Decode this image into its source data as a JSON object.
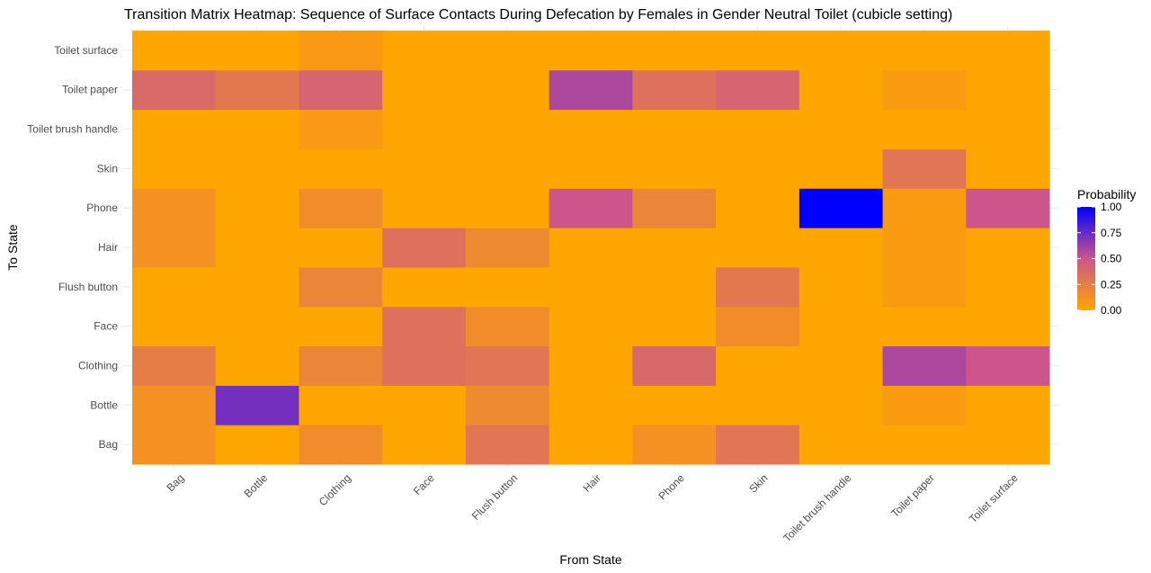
{
  "chart_data": {
    "type": "heatmap",
    "title": "Transition Matrix Heatmap: Sequence of Surface Contacts During Defecation by Females in Gender Neutral Toilet (cubicle setting)",
    "xlabel": "From State",
    "ylabel": "To State",
    "x_categories": [
      "Bag",
      "Bottle",
      "Clothing",
      "Face",
      "Flush button",
      "Hair",
      "Phone",
      "Skin",
      "Toilet brush handle",
      "Toilet paper",
      "Toilet surface"
    ],
    "y_categories": [
      "Bag",
      "Bottle",
      "Clothing",
      "Face",
      "Flush button",
      "Hair",
      "Phone",
      "Skin",
      "Toilet brush handle",
      "Toilet paper",
      "Toilet surface"
    ],
    "values": [
      [
        0.12,
        0.0,
        0.15,
        0.0,
        0.3,
        0.0,
        0.12,
        0.3,
        0.0,
        0.0,
        0.0
      ],
      [
        0.12,
        0.72,
        0.0,
        0.0,
        0.17,
        0.0,
        0.0,
        0.0,
        0.0,
        0.06,
        0.0
      ],
      [
        0.25,
        0.0,
        0.2,
        0.33,
        0.3,
        0.0,
        0.38,
        0.0,
        0.0,
        0.58,
        0.5
      ],
      [
        0.0,
        0.0,
        0.0,
        0.33,
        0.15,
        0.0,
        0.0,
        0.15,
        0.0,
        0.0,
        0.0
      ],
      [
        0.0,
        0.0,
        0.2,
        0.0,
        0.0,
        0.0,
        0.0,
        0.28,
        0.0,
        0.06,
        0.0
      ],
      [
        0.12,
        0.0,
        0.0,
        0.33,
        0.17,
        0.0,
        0.0,
        0.0,
        0.0,
        0.06,
        0.0
      ],
      [
        0.12,
        0.0,
        0.15,
        0.0,
        0.0,
        0.5,
        0.2,
        0.0,
        1.0,
        0.06,
        0.5
      ],
      [
        0.0,
        0.0,
        0.0,
        0.0,
        0.0,
        0.0,
        0.0,
        0.0,
        0.0,
        0.3,
        0.0
      ],
      [
        0.0,
        0.0,
        0.07,
        0.0,
        0.0,
        0.0,
        0.0,
        0.0,
        0.0,
        0.0,
        0.0
      ],
      [
        0.37,
        0.28,
        0.4,
        0.0,
        0.0,
        0.58,
        0.33,
        0.4,
        0.0,
        0.06,
        0.0
      ],
      [
        0.0,
        0.0,
        0.07,
        0.0,
        0.0,
        0.0,
        0.0,
        0.0,
        0.0,
        0.0,
        0.0
      ]
    ],
    "legend": {
      "title": "Probability",
      "ticks": [
        "0.00",
        "0.25",
        "0.50",
        "0.75",
        "1.00"
      ],
      "tick_values": [
        0,
        0.25,
        0.5,
        0.75,
        1.0
      ],
      "placement": "right"
    },
    "colors": {
      "low": "#ffa500",
      "high": "#0000ff"
    },
    "zlim": [
      0,
      1
    ],
    "grid": true
  }
}
